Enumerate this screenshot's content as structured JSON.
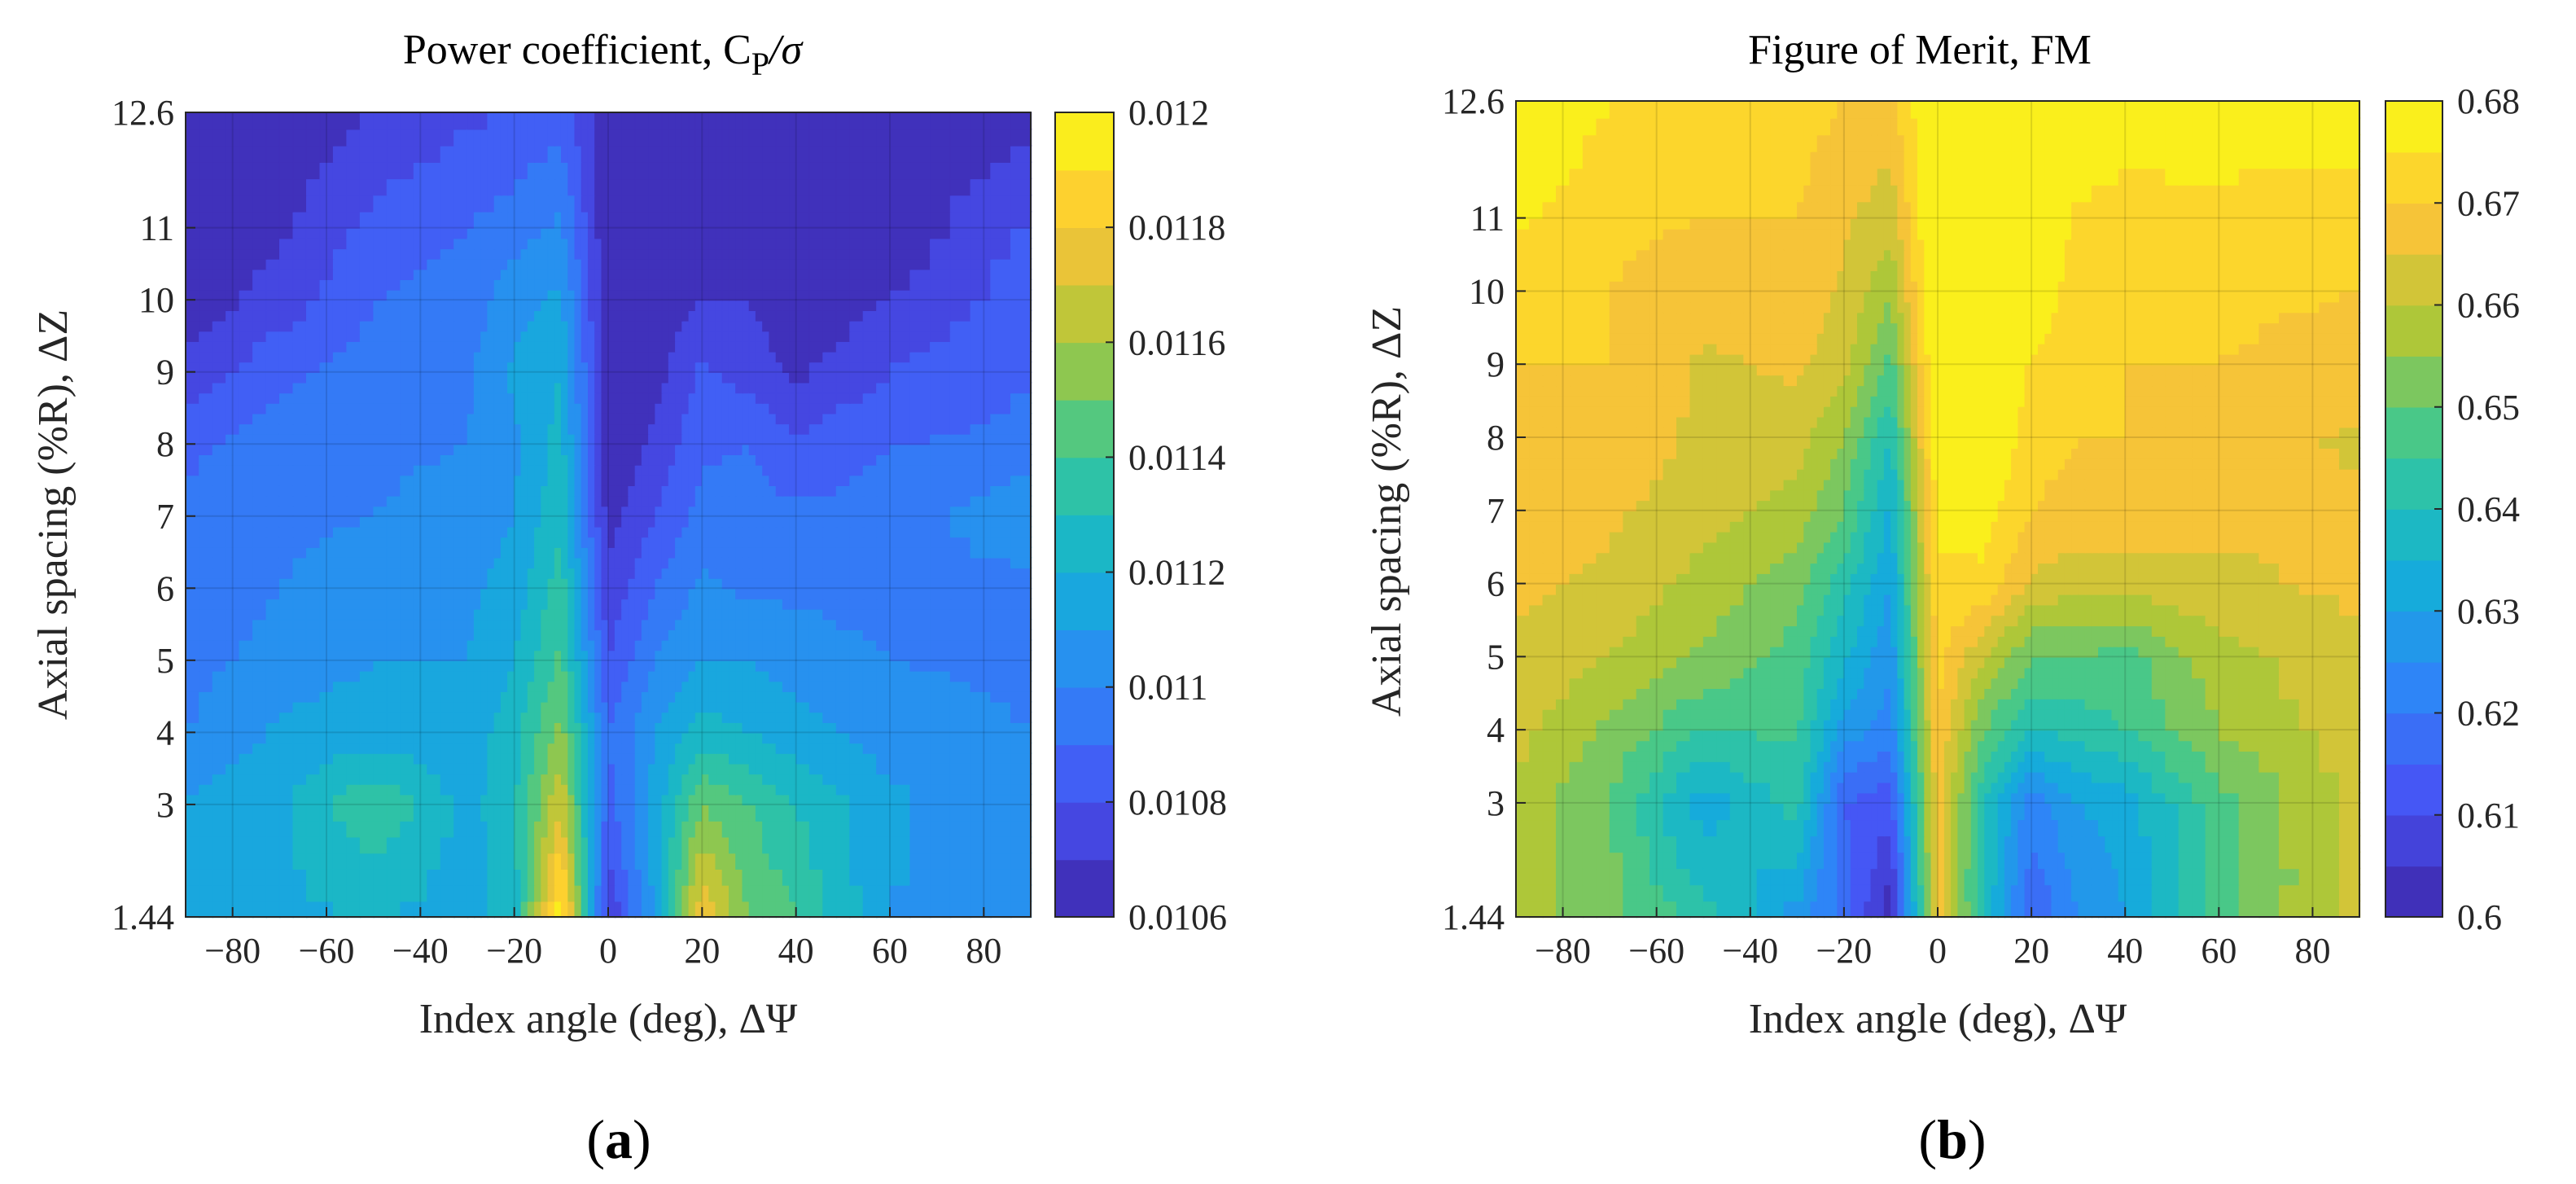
{
  "chart_data": [
    {
      "id": "a",
      "type": "heatmap",
      "subplot_label": "a",
      "title": "Power coefficient, C",
      "title_subscript": "P",
      "title_suffix": "/σ",
      "xlabel": "Index angle (deg), ΔΨ",
      "ylabel": "Axial spacing (%R), ΔZ",
      "xlim": [
        -90,
        90
      ],
      "ylim": [
        1.44,
        12.6
      ],
      "x_ticks": [
        -80,
        -60,
        -40,
        -20,
        0,
        20,
        40,
        60,
        80
      ],
      "y_ticks": [
        1.44,
        3,
        4,
        5,
        6,
        7,
        8,
        9,
        10,
        11,
        12.6
      ],
      "colorbar": {
        "min": 0.0106,
        "max": 0.012,
        "ticks": [
          "0.0106",
          "0.0108",
          "0.011",
          "0.0112",
          "0.0114",
          "0.0116",
          "0.0118",
          "0.012"
        ],
        "levels": 14,
        "colormap": "parula"
      },
      "x": [
        -90,
        -70,
        -50,
        -30,
        -20,
        -10,
        0,
        10,
        20,
        30,
        40,
        60,
        90
      ],
      "y": [
        1.44,
        3,
        4,
        5,
        6,
        7,
        8,
        9,
        10,
        11,
        12.6
      ],
      "z": [
        [
          0.01112,
          0.01118,
          0.0112,
          0.01116,
          0.01124,
          0.012,
          0.0107,
          0.01112,
          0.0118,
          0.0115,
          0.0114,
          0.0111,
          0.01102
        ],
        [
          0.01112,
          0.01118,
          0.0114,
          0.01116,
          0.01128,
          0.0117,
          0.01086,
          0.01114,
          0.0115,
          0.0114,
          0.0113,
          0.01112,
          0.01102
        ],
        [
          0.011,
          0.01112,
          0.01115,
          0.01114,
          0.01126,
          0.01154,
          0.0109,
          0.0111,
          0.01125,
          0.0112,
          0.01114,
          0.01106,
          0.011
        ],
        [
          0.01096,
          0.01104,
          0.0111,
          0.0111,
          0.0112,
          0.01142,
          0.0108,
          0.011,
          0.0111,
          0.0111,
          0.01106,
          0.011,
          0.01098
        ],
        [
          0.01094,
          0.011,
          0.01105,
          0.01108,
          0.01114,
          0.01136,
          0.01072,
          0.0109,
          0.01102,
          0.01098,
          0.01098,
          0.01096,
          0.01096
        ],
        [
          0.01092,
          0.01098,
          0.011,
          0.01104,
          0.0111,
          0.01128,
          0.01066,
          0.0108,
          0.01094,
          0.01094,
          0.01092,
          0.01094,
          0.0111
        ],
        [
          0.01088,
          0.01095,
          0.01098,
          0.011,
          0.01108,
          0.01124,
          0.01062,
          0.01072,
          0.01088,
          0.0109,
          0.01082,
          0.0109,
          0.01092
        ],
        [
          0.01072,
          0.01088,
          0.01094,
          0.01098,
          0.01112,
          0.0112,
          0.01061,
          0.01066,
          0.01082,
          0.01076,
          0.01068,
          0.0108,
          0.0109
        ],
        [
          0.01064,
          0.01074,
          0.0109,
          0.01094,
          0.01106,
          0.01112,
          0.01061,
          0.01064,
          0.0107,
          0.0107,
          0.01062,
          0.0107,
          0.01086
        ],
        [
          0.01062,
          0.01068,
          0.01084,
          0.0109,
          0.01096,
          0.01102,
          0.01061,
          0.01062,
          0.01064,
          0.01062,
          0.01062,
          0.01062,
          0.01082
        ],
        [
          0.01062,
          0.01063,
          0.0107,
          0.01078,
          0.0108,
          0.01086,
          0.01061,
          0.01061,
          0.01062,
          0.01062,
          0.01062,
          0.01062,
          0.01066
        ]
      ]
    },
    {
      "id": "b",
      "type": "heatmap",
      "subplot_label": "b",
      "title": "Figure of Merit, FM",
      "title_subscript": "",
      "title_suffix": "",
      "xlabel": "Index angle (deg), ΔΨ",
      "ylabel": "Axial spacing (%R), ΔZ",
      "xlim": [
        -90,
        90
      ],
      "ylim": [
        1.44,
        12.6
      ],
      "x_ticks": [
        -80,
        -60,
        -40,
        -20,
        0,
        20,
        40,
        60,
        80
      ],
      "y_ticks": [
        1.44,
        3,
        4,
        5,
        6,
        7,
        8,
        9,
        10,
        11,
        12.6
      ],
      "colorbar": {
        "min": 0.6,
        "max": 0.68,
        "ticks": [
          "0.6",
          "0.61",
          "0.62",
          "0.63",
          "0.64",
          "0.65",
          "0.66",
          "0.67",
          "0.68"
        ],
        "levels": 16,
        "colormap": "parula"
      },
      "x": [
        -90,
        -70,
        -50,
        -30,
        -20,
        -10,
        0,
        10,
        20,
        30,
        40,
        60,
        90
      ],
      "y": [
        1.44,
        3,
        4,
        5,
        6,
        7,
        8,
        9,
        10,
        11,
        12.6
      ],
      "z": [
        [
          0.658,
          0.652,
          0.642,
          0.628,
          0.618,
          0.601,
          0.668,
          0.64,
          0.615,
          0.625,
          0.63,
          0.648,
          0.662
        ],
        [
          0.658,
          0.65,
          0.632,
          0.642,
          0.615,
          0.612,
          0.668,
          0.64,
          0.622,
          0.63,
          0.632,
          0.648,
          0.662
        ],
        [
          0.662,
          0.654,
          0.645,
          0.646,
          0.628,
          0.622,
          0.67,
          0.65,
          0.64,
          0.642,
          0.645,
          0.655,
          0.663
        ],
        [
          0.664,
          0.66,
          0.654,
          0.648,
          0.636,
          0.626,
          0.672,
          0.66,
          0.65,
          0.65,
          0.648,
          0.658,
          0.664
        ],
        [
          0.666,
          0.664,
          0.658,
          0.652,
          0.642,
          0.63,
          0.674,
          0.674,
          0.664,
          0.662,
          0.662,
          0.664,
          0.666
        ],
        [
          0.668,
          0.666,
          0.662,
          0.658,
          0.65,
          0.634,
          0.676,
          0.677,
          0.67,
          0.668,
          0.668,
          0.666,
          0.666
        ],
        [
          0.67,
          0.668,
          0.664,
          0.662,
          0.655,
          0.64,
          0.68,
          0.682,
          0.672,
          0.67,
          0.67,
          0.668,
          0.664
        ],
        [
          0.67,
          0.67,
          0.664,
          0.666,
          0.662,
          0.648,
          0.682,
          0.684,
          0.674,
          0.672,
          0.67,
          0.67,
          0.668
        ],
        [
          0.672,
          0.67,
          0.667,
          0.668,
          0.664,
          0.656,
          0.683,
          0.685,
          0.68,
          0.672,
          0.671,
          0.671,
          0.67
        ],
        [
          0.676,
          0.671,
          0.67,
          0.67,
          0.666,
          0.662,
          0.683,
          0.685,
          0.681,
          0.674,
          0.672,
          0.672,
          0.671
        ],
        [
          0.682,
          0.675,
          0.672,
          0.672,
          0.67,
          0.668,
          0.683,
          0.685,
          0.682,
          0.681,
          0.68,
          0.681,
          0.68
        ]
      ]
    }
  ]
}
